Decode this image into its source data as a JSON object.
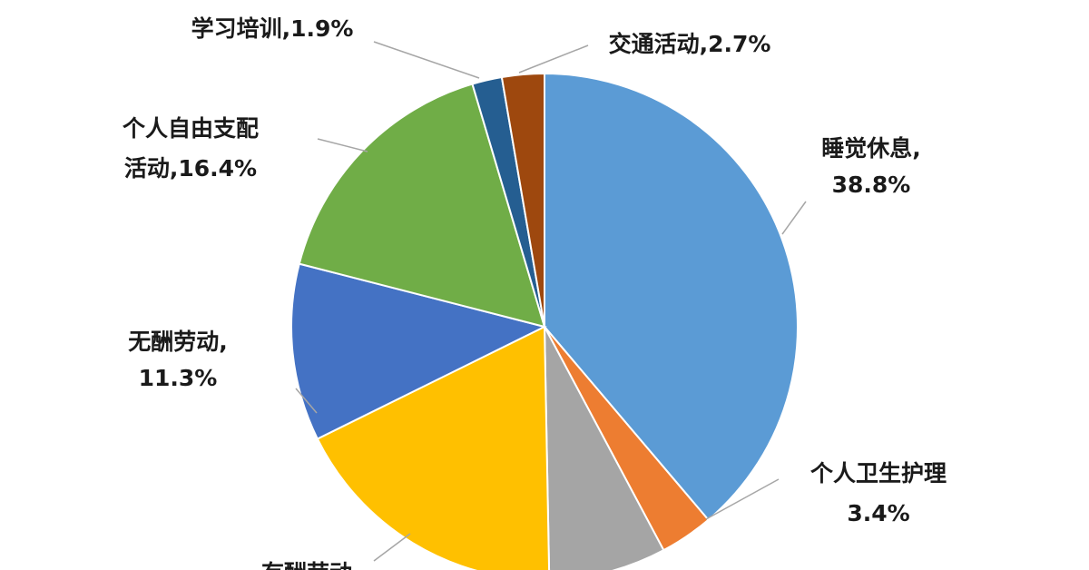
{
  "chart_data": {
    "type": "pie",
    "title": "",
    "slices": [
      {
        "label": "睡觉休息",
        "value": 38.8,
        "color": "#5b9bd5"
      },
      {
        "label": "个人卫生护理",
        "value": 3.4,
        "color": "#ed7d31"
      },
      {
        "label": "",
        "value": 7.5,
        "color": "#a5a5a5"
      },
      {
        "label": "有酬劳动",
        "value": 18.0,
        "color": "#ffc000"
      },
      {
        "label": "无酬劳动",
        "value": 11.3,
        "color": "#4472c4"
      },
      {
        "label": "个人自由支配活动",
        "value": 16.4,
        "color": "#70ad47"
      },
      {
        "label": "学习培训",
        "value": 1.9,
        "color": "#255e91"
      },
      {
        "label": "交通活动",
        "value": 2.7,
        "color": "#9e480e"
      }
    ],
    "data_labels": [
      {
        "lines": [
          "睡觉休息,",
          "38.8%"
        ]
      },
      {
        "lines": [
          "个人卫生护理",
          "3.4%"
        ]
      },
      {
        "lines": [
          "有酬劳动"
        ]
      },
      {
        "lines": [
          "无酬劳动,",
          "11.3%"
        ]
      },
      {
        "lines": [
          "个人自由支配",
          "活动,16.4%"
        ]
      },
      {
        "lines": [
          "学习培训,1.9%"
        ]
      },
      {
        "lines": [
          "交通活动,2.7%"
        ]
      }
    ]
  }
}
